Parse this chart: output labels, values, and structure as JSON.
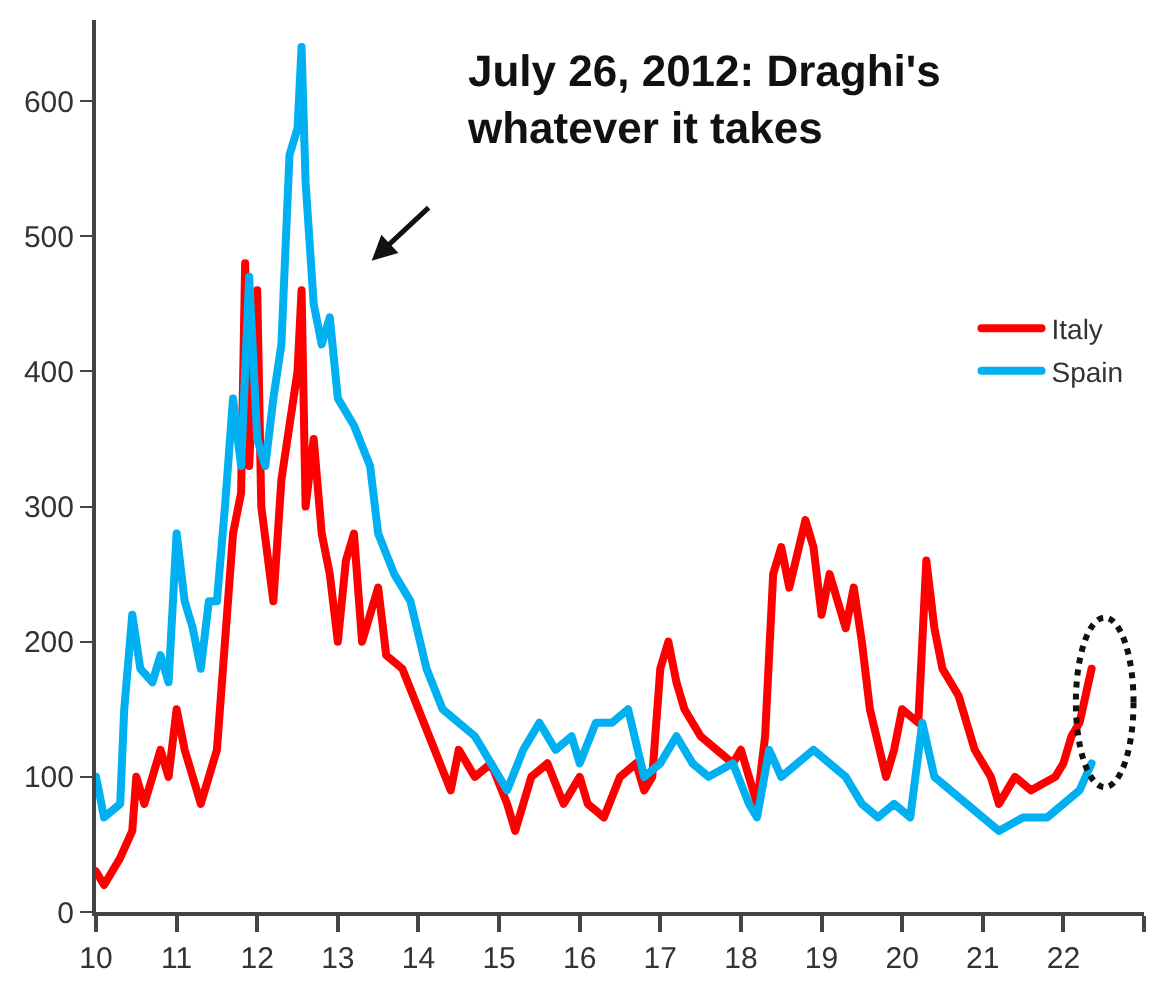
{
  "chart_data": {
    "type": "line",
    "annotations": [
      "July 26, 2012: Draghi's\nwhatever it takes"
    ],
    "xlim": [
      10,
      23
    ],
    "xticks": [
      10,
      11,
      12,
      13,
      14,
      15,
      16,
      17,
      18,
      19,
      20,
      21,
      22,
      {
        "value": 23,
        "label": null
      }
    ],
    "ylim": [
      0,
      660
    ],
    "yticks": [
      0,
      100,
      200,
      300,
      400,
      500,
      600
    ],
    "legend": "right",
    "marker": "none",
    "line_style": "solid",
    "series": [
      {
        "name": "Italy",
        "color": "#ff0000",
        "x": [
          10.0,
          10.1,
          10.3,
          10.45,
          10.5,
          10.6,
          10.8,
          10.9,
          11.0,
          11.1,
          11.2,
          11.3,
          11.5,
          11.6,
          11.7,
          11.8,
          11.85,
          11.9,
          12.0,
          12.05,
          12.2,
          12.3,
          12.4,
          12.5,
          12.55,
          12.6,
          12.7,
          12.8,
          12.9,
          13.0,
          13.1,
          13.2,
          13.3,
          13.5,
          13.6,
          13.8,
          14.0,
          14.2,
          14.4,
          14.5,
          14.7,
          14.9,
          15.1,
          15.2,
          15.4,
          15.6,
          15.8,
          16.0,
          16.1,
          16.3,
          16.5,
          16.7,
          16.8,
          16.9,
          17.0,
          17.1,
          17.2,
          17.3,
          17.5,
          17.7,
          17.9,
          18.0,
          18.2,
          18.3,
          18.4,
          18.5,
          18.6,
          18.8,
          18.9,
          19.0,
          19.1,
          19.3,
          19.4,
          19.5,
          19.6,
          19.8,
          19.9,
          20.0,
          20.2,
          20.3,
          20.4,
          20.5,
          20.7,
          20.9,
          21.1,
          21.2,
          21.4,
          21.6,
          21.9,
          22.0,
          22.1,
          22.2,
          22.35
        ],
        "values": [
          30,
          20,
          40,
          60,
          100,
          80,
          120,
          100,
          150,
          120,
          100,
          80,
          120,
          200,
          280,
          310,
          480,
          330,
          460,
          300,
          230,
          320,
          360,
          400,
          460,
          300,
          350,
          280,
          250,
          200,
          260,
          280,
          200,
          240,
          190,
          180,
          150,
          120,
          90,
          120,
          100,
          110,
          80,
          60,
          100,
          110,
          80,
          100,
          80,
          70,
          100,
          110,
          90,
          100,
          180,
          200,
          170,
          150,
          130,
          120,
          110,
          120,
          80,
          130,
          250,
          270,
          240,
          290,
          270,
          220,
          250,
          210,
          240,
          200,
          150,
          100,
          120,
          150,
          140,
          260,
          210,
          180,
          160,
          120,
          100,
          80,
          100,
          90,
          100,
          110,
          130,
          140,
          180
        ]
      },
      {
        "name": "Spain",
        "color": "#00b0f0",
        "x": [
          10.0,
          10.1,
          10.3,
          10.35,
          10.45,
          10.55,
          10.7,
          10.8,
          10.9,
          11.0,
          11.1,
          11.2,
          11.3,
          11.4,
          11.5,
          11.6,
          11.7,
          11.8,
          11.9,
          12.0,
          12.1,
          12.2,
          12.3,
          12.4,
          12.5,
          12.55,
          12.6,
          12.7,
          12.8,
          12.9,
          13.0,
          13.2,
          13.4,
          13.5,
          13.7,
          13.9,
          14.1,
          14.3,
          14.5,
          14.7,
          14.9,
          15.1,
          15.3,
          15.5,
          15.7,
          15.9,
          16.0,
          16.2,
          16.4,
          16.6,
          16.8,
          17.0,
          17.2,
          17.4,
          17.6,
          17.9,
          18.1,
          18.2,
          18.35,
          18.5,
          18.7,
          18.9,
          19.1,
          19.3,
          19.5,
          19.7,
          19.9,
          20.1,
          20.25,
          20.4,
          20.6,
          20.8,
          21.0,
          21.2,
          21.5,
          21.8,
          22.0,
          22.2,
          22.35
        ],
        "values": [
          100,
          70,
          80,
          150,
          220,
          180,
          170,
          190,
          170,
          280,
          230,
          210,
          180,
          230,
          230,
          300,
          380,
          330,
          470,
          350,
          330,
          380,
          420,
          560,
          580,
          640,
          540,
          450,
          420,
          440,
          380,
          360,
          330,
          280,
          250,
          230,
          180,
          150,
          140,
          130,
          110,
          90,
          120,
          140,
          120,
          130,
          110,
          140,
          140,
          150,
          100,
          110,
          130,
          110,
          100,
          110,
          80,
          70,
          120,
          100,
          110,
          120,
          110,
          100,
          80,
          70,
          80,
          70,
          140,
          100,
          90,
          80,
          70,
          60,
          70,
          70,
          80,
          90,
          110
        ]
      }
    ]
  }
}
